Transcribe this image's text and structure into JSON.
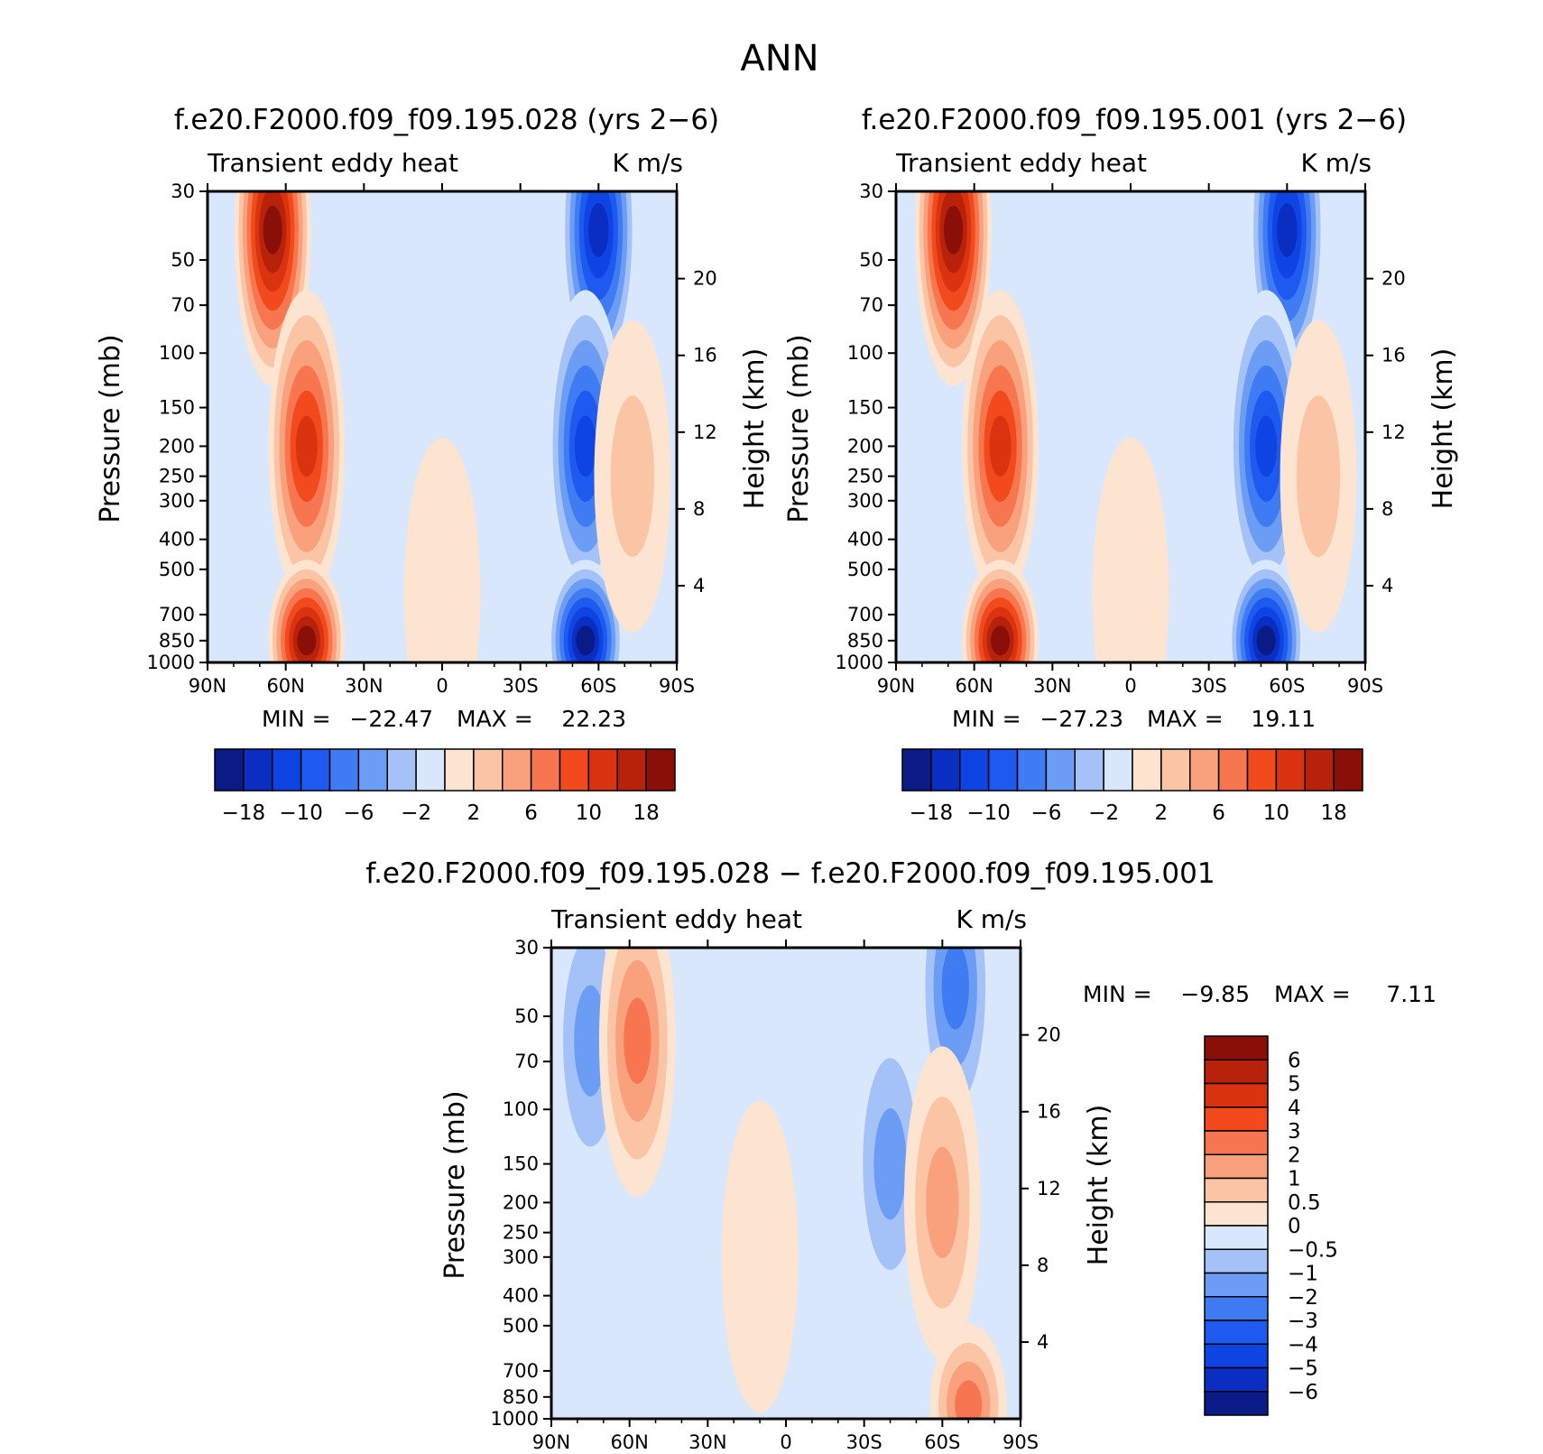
{
  "colors": {
    "blue": [
      "#0a1a86",
      "#0a2ec2",
      "#0e44e4",
      "#1f5af0",
      "#3f7bf2",
      "#6b9df4",
      "#a4c2f7",
      "#d8e7fb"
    ],
    "red": [
      "#fde4d1",
      "#fbc4a5",
      "#f9a07c",
      "#f77650",
      "#f34a1d",
      "#d9340f",
      "#b8220a",
      "#8a0f08"
    ]
  },
  "figure": {
    "title": "ANN"
  },
  "chart_data": [
    {
      "type": "heatmap",
      "title": "f.e20.F2000.f09_f09.195.028 (yrs 2−6)",
      "left_label": "Transient eddy heat",
      "right_label": "K m/s",
      "xlabel": "",
      "ylabel": "Pressure (mb)",
      "ylabel_right": "Height (km)",
      "xticks": [
        "90N",
        "60N",
        "30N",
        "0",
        "30S",
        "60S",
        "90S"
      ],
      "yticks": [
        "30",
        "50",
        "70",
        "100",
        "150",
        "200",
        "250",
        "300",
        "400",
        "500",
        "700",
        "850",
        "1000"
      ],
      "yticks_right": [
        "20",
        "16",
        "12",
        "8",
        "4"
      ],
      "min_label": "MIN =",
      "min_value": "−22.47",
      "max_label": "MAX =",
      "max_value": "22.23",
      "colorbar_levels": [
        -18,
        -14,
        -10,
        -8,
        -6,
        -4,
        -2,
        0,
        2,
        4,
        6,
        8,
        10,
        14,
        18
      ],
      "colorbar_ticks": [
        "−18",
        "−10",
        "−6",
        "−2",
        "2",
        "6",
        "10",
        "18"
      ],
      "features": [
        {
          "lat": 65,
          "p": 40,
          "value": 22
        },
        {
          "lat": 52,
          "p": 200,
          "value": 12
        },
        {
          "lat": 52,
          "p": 850,
          "value": 21
        },
        {
          "lat": -60,
          "p": 40,
          "value": -17
        },
        {
          "lat": -55,
          "p": 200,
          "value": -13
        },
        {
          "lat": -55,
          "p": 850,
          "value": -22
        },
        {
          "lat": -73,
          "p": 250,
          "value": 2.5
        },
        {
          "lat": 0,
          "p": 600,
          "value": 1.5
        }
      ]
    },
    {
      "type": "heatmap",
      "title": "f.e20.F2000.f09_f09.195.001 (yrs 2−6)",
      "left_label": "Transient eddy heat",
      "right_label": "K m/s",
      "xlabel": "",
      "ylabel": "Pressure (mb)",
      "ylabel_right": "Height (km)",
      "xticks": [
        "90N",
        "60N",
        "30N",
        "0",
        "30S",
        "60S",
        "90S"
      ],
      "yticks": [
        "30",
        "50",
        "70",
        "100",
        "150",
        "200",
        "250",
        "300",
        "400",
        "500",
        "700",
        "850",
        "1000"
      ],
      "yticks_right": [
        "20",
        "16",
        "12",
        "8",
        "4"
      ],
      "min_label": "MIN =",
      "min_value": "−27.23",
      "max_label": "MAX =",
      "max_value": "19.11",
      "colorbar_levels": [
        -18,
        -14,
        -10,
        -8,
        -6,
        -4,
        -2,
        0,
        2,
        4,
        6,
        8,
        10,
        14,
        18
      ],
      "colorbar_ticks": [
        "−18",
        "−10",
        "−6",
        "−2",
        "2",
        "6",
        "10",
        "18"
      ],
      "features": [
        {
          "lat": 68,
          "p": 40,
          "value": 19
        },
        {
          "lat": 50,
          "p": 200,
          "value": 12
        },
        {
          "lat": 50,
          "p": 850,
          "value": 19
        },
        {
          "lat": -60,
          "p": 40,
          "value": -16
        },
        {
          "lat": -52,
          "p": 200,
          "value": -14
        },
        {
          "lat": -52,
          "p": 850,
          "value": -27
        },
        {
          "lat": -72,
          "p": 250,
          "value": 2.5
        },
        {
          "lat": 0,
          "p": 600,
          "value": 1.5
        }
      ]
    },
    {
      "type": "heatmap",
      "title": "f.e20.F2000.f09_f09.195.028 − f.e20.F2000.f09_f09.195.001",
      "left_label": "Transient eddy heat",
      "right_label": "K m/s",
      "xlabel": "",
      "ylabel": "Pressure (mb)",
      "ylabel_right": "Height (km)",
      "xticks": [
        "90N",
        "60N",
        "30N",
        "0",
        "30S",
        "60S",
        "90S"
      ],
      "yticks": [
        "30",
        "50",
        "70",
        "100",
        "150",
        "200",
        "250",
        "300",
        "400",
        "500",
        "700",
        "850",
        "1000"
      ],
      "yticks_right": [
        "20",
        "16",
        "12",
        "8",
        "4"
      ],
      "min_label": "MIN =",
      "min_value": "−9.85",
      "max_label": "MAX =",
      "max_value": "7.11",
      "colorbar_levels": [
        -6,
        -5,
        -4,
        -3,
        -2,
        -1,
        -0.5,
        0,
        0.5,
        1,
        2,
        3,
        4,
        5,
        6
      ],
      "colorbar_ticks": [
        "6",
        "5",
        "4",
        "3",
        "2",
        "1",
        "0.5",
        "0",
        "−0.5",
        "−1",
        "−2",
        "−3",
        "−4",
        "−5",
        "−6"
      ],
      "features": [
        {
          "lat": 75,
          "p": 60,
          "value": -2
        },
        {
          "lat": 57,
          "p": 60,
          "value": 2
        },
        {
          "lat": -65,
          "p": 40,
          "value": -3
        },
        {
          "lat": -40,
          "p": 150,
          "value": -1.5
        },
        {
          "lat": -60,
          "p": 200,
          "value": 1
        },
        {
          "lat": -70,
          "p": 900,
          "value": 2.5
        },
        {
          "lat": 10,
          "p": 300,
          "value": 0.3
        }
      ]
    }
  ]
}
